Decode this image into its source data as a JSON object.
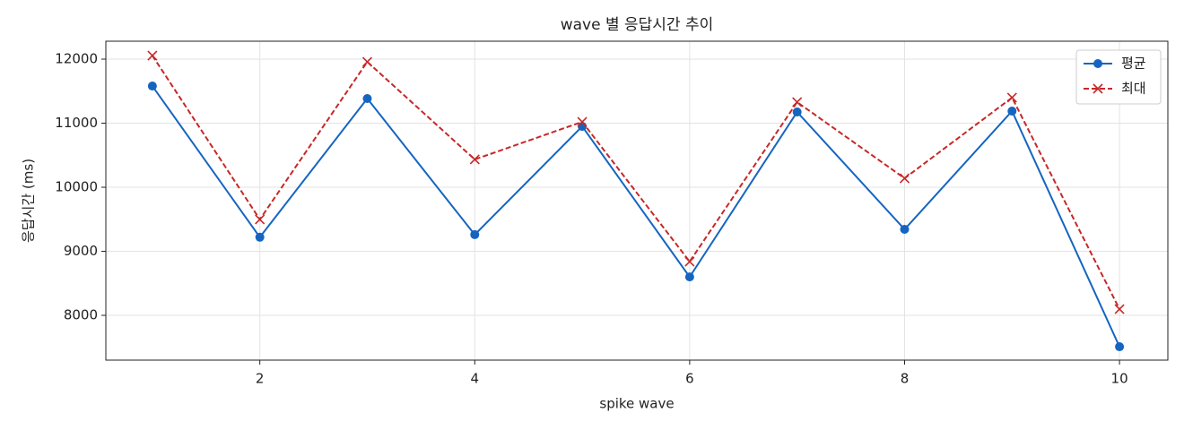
{
  "chart_data": {
    "type": "line",
    "title": "wave 별 응답시간 추이",
    "xlabel": "spike wave",
    "ylabel": "응답시간 (ms)",
    "x": [
      1,
      2,
      3,
      4,
      5,
      6,
      7,
      8,
      9,
      10
    ],
    "series": [
      {
        "name": "평균",
        "color": "#1565c0",
        "marker": "circle",
        "dashed": false,
        "values": [
          11580,
          9220,
          11385,
          9260,
          10950,
          8600,
          11175,
          9343,
          11189,
          7510
        ]
      },
      {
        "name": "최대",
        "color": "#c62828",
        "marker": "x",
        "dashed": true,
        "values": [
          12056,
          9497,
          11958,
          10434,
          11021,
          8839,
          11329,
          10140,
          11399,
          8098
        ]
      }
    ],
    "xlim": [
      0.567,
      10.45
    ],
    "xticks": [
      2,
      4,
      6,
      8,
      10
    ],
    "ylim": [
      7301,
      12280
    ],
    "yticks": [
      8000,
      9000,
      10000,
      11000,
      12000
    ],
    "grid": true,
    "legend": "upper right"
  }
}
